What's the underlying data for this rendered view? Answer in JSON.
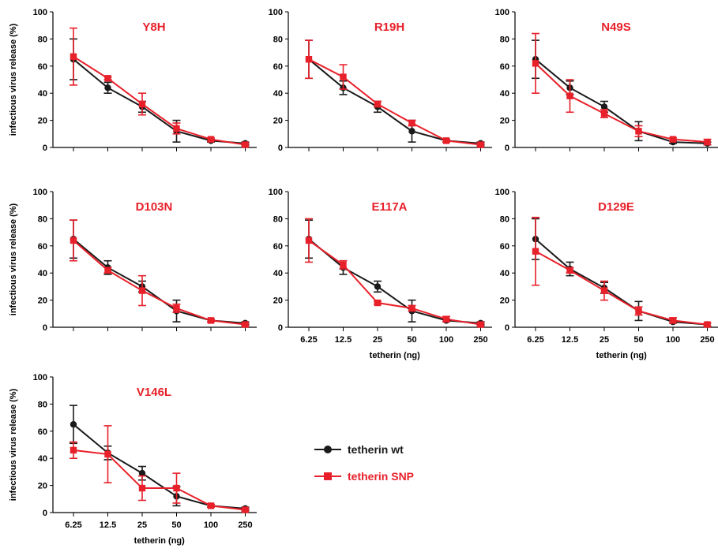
{
  "colors": {
    "wt": "#1a1a1a",
    "snp": "#e8202a",
    "title": "#e8202a",
    "axis": "#000000"
  },
  "legend": [
    {
      "series": "wt",
      "label": "tetherin wt",
      "marker": "circle"
    },
    {
      "series": "snp",
      "label": "tetherin SNP",
      "marker": "square"
    }
  ],
  "axes": {
    "ylabel": "infectious virus release (%)",
    "xlabel": "tetherin (ng)",
    "xticks": [
      "6.25",
      "12.5",
      "25",
      "50",
      "100",
      "250"
    ],
    "yticks": [
      "0",
      "20",
      "40",
      "60",
      "80",
      "100"
    ]
  },
  "chart_data": [
    {
      "type": "line",
      "title": "Y8H",
      "ylim": [
        0,
        100
      ],
      "categories": [
        "6.25",
        "12.5",
        "25",
        "50",
        "100",
        "250"
      ],
      "series": [
        {
          "name": "tetherin wt",
          "values": [
            65,
            44,
            30,
            12,
            5,
            3
          ],
          "err": [
            15,
            4,
            4,
            8,
            1,
            1
          ]
        },
        {
          "name": "tetherin SNP",
          "values": [
            67,
            51,
            32,
            14,
            6,
            2
          ],
          "err": [
            21,
            1,
            8,
            4,
            1,
            1
          ]
        }
      ]
    },
    {
      "type": "line",
      "title": "R19H",
      "ylim": [
        0,
        100
      ],
      "categories": [
        "6.25",
        "12.5",
        "25",
        "50",
        "100",
        "250"
      ],
      "series": [
        {
          "name": "tetherin wt",
          "values": [
            65,
            44,
            30,
            12,
            5,
            3
          ],
          "err": [
            14,
            5,
            4,
            8,
            1,
            1
          ]
        },
        {
          "name": "tetherin SNP",
          "values": [
            65,
            52,
            32,
            18,
            5,
            2
          ],
          "err": [
            14,
            9,
            2,
            2,
            1,
            1
          ]
        }
      ]
    },
    {
      "type": "line",
      "title": "N49S",
      "ylim": [
        0,
        100
      ],
      "categories": [
        "6.25",
        "12.5",
        "25",
        "50",
        "100",
        "250"
      ],
      "series": [
        {
          "name": "tetherin wt",
          "values": [
            65,
            44,
            30,
            12,
            4,
            3
          ],
          "err": [
            14,
            5,
            4,
            7,
            1,
            1
          ]
        },
        {
          "name": "tetherin SNP",
          "values": [
            62,
            38,
            25,
            12,
            6,
            4
          ],
          "err": [
            22,
            12,
            3,
            4,
            1,
            2
          ]
        }
      ]
    },
    {
      "type": "line",
      "title": "D103N",
      "ylim": [
        0,
        100
      ],
      "categories": [
        "6.25",
        "12.5",
        "25",
        "50",
        "100",
        "250"
      ],
      "series": [
        {
          "name": "tetherin wt",
          "values": [
            65,
            44,
            30,
            12,
            5,
            3
          ],
          "err": [
            14,
            5,
            4,
            8,
            1,
            1
          ]
        },
        {
          "name": "tetherin SNP",
          "values": [
            64,
            42,
            27,
            14,
            5,
            2
          ],
          "err": [
            15,
            2,
            11,
            3,
            1,
            1
          ]
        }
      ]
    },
    {
      "type": "line",
      "title": "E117A",
      "ylim": [
        0,
        100
      ],
      "categories": [
        "6.25",
        "12.5",
        "25",
        "50",
        "100",
        "250"
      ],
      "series": [
        {
          "name": "tetherin wt",
          "values": [
            65,
            44,
            30,
            12,
            5,
            3
          ],
          "err": [
            14,
            5,
            4,
            8,
            1,
            1
          ]
        },
        {
          "name": "tetherin SNP",
          "values": [
            64,
            46,
            18,
            14,
            6,
            2
          ],
          "err": [
            16,
            3,
            1,
            2,
            2,
            1
          ]
        }
      ]
    },
    {
      "type": "line",
      "title": "D129E",
      "ylim": [
        0,
        100
      ],
      "categories": [
        "6.25",
        "12.5",
        "25",
        "50",
        "100",
        "250"
      ],
      "series": [
        {
          "name": "tetherin wt",
          "values": [
            65,
            43,
            29,
            12,
            4,
            2
          ],
          "err": [
            15,
            5,
            4,
            7,
            1,
            1
          ]
        },
        {
          "name": "tetherin SNP",
          "values": [
            56,
            42,
            27,
            12,
            5,
            2
          ],
          "err": [
            25,
            2,
            7,
            3,
            2,
            1
          ]
        }
      ]
    },
    {
      "type": "line",
      "title": "V146L",
      "ylim": [
        0,
        100
      ],
      "categories": [
        "6.25",
        "12.5",
        "25",
        "50",
        "100",
        "250"
      ],
      "series": [
        {
          "name": "tetherin wt",
          "values": [
            65,
            44,
            29,
            12,
            5,
            3
          ],
          "err": [
            14,
            5,
            5,
            7,
            1,
            1
          ]
        },
        {
          "name": "tetherin SNP",
          "values": [
            46,
            43,
            18,
            18,
            5,
            2
          ],
          "err": [
            6,
            21,
            9,
            11,
            1,
            1
          ]
        }
      ]
    }
  ]
}
